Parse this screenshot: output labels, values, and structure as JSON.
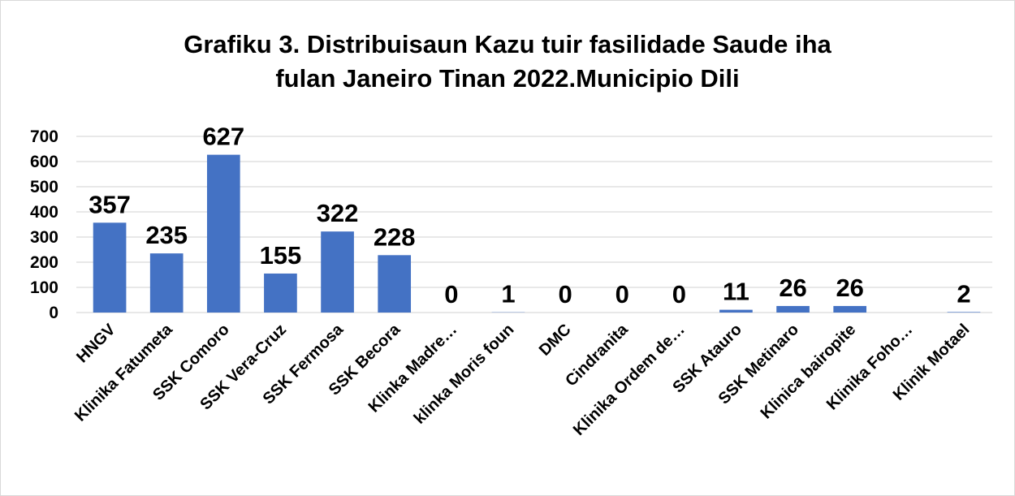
{
  "chart_data": {
    "type": "bar",
    "title": "Grafiku 3. Distribuisaun Kazu tuir fasilidade Saude iha\nfulan Janeiro Tinan 2022.Municipio Dili",
    "categories": [
      "HNGV",
      "Klinika Fatumeta",
      "SSK Comoro",
      "SSK Vera-Cruz",
      "SSK Fermosa",
      "SSK Becora",
      "Klinka Madre…",
      "klinka Moris foun",
      "DMC",
      "Cindranita",
      "Klinika Ordem de…",
      "SSK Atauro",
      "SSK Metinaro",
      "Klinica bairopite",
      "Klinika Foho…",
      "Klinik Motael"
    ],
    "values": [
      357,
      235,
      627,
      155,
      322,
      228,
      0,
      1,
      0,
      0,
      0,
      11,
      26,
      26,
      null,
      2
    ],
    "color": "#4472c4",
    "ylim": [
      0,
      700
    ],
    "yticks": [
      0,
      100,
      200,
      300,
      400,
      500,
      600,
      700
    ],
    "grid": true
  }
}
